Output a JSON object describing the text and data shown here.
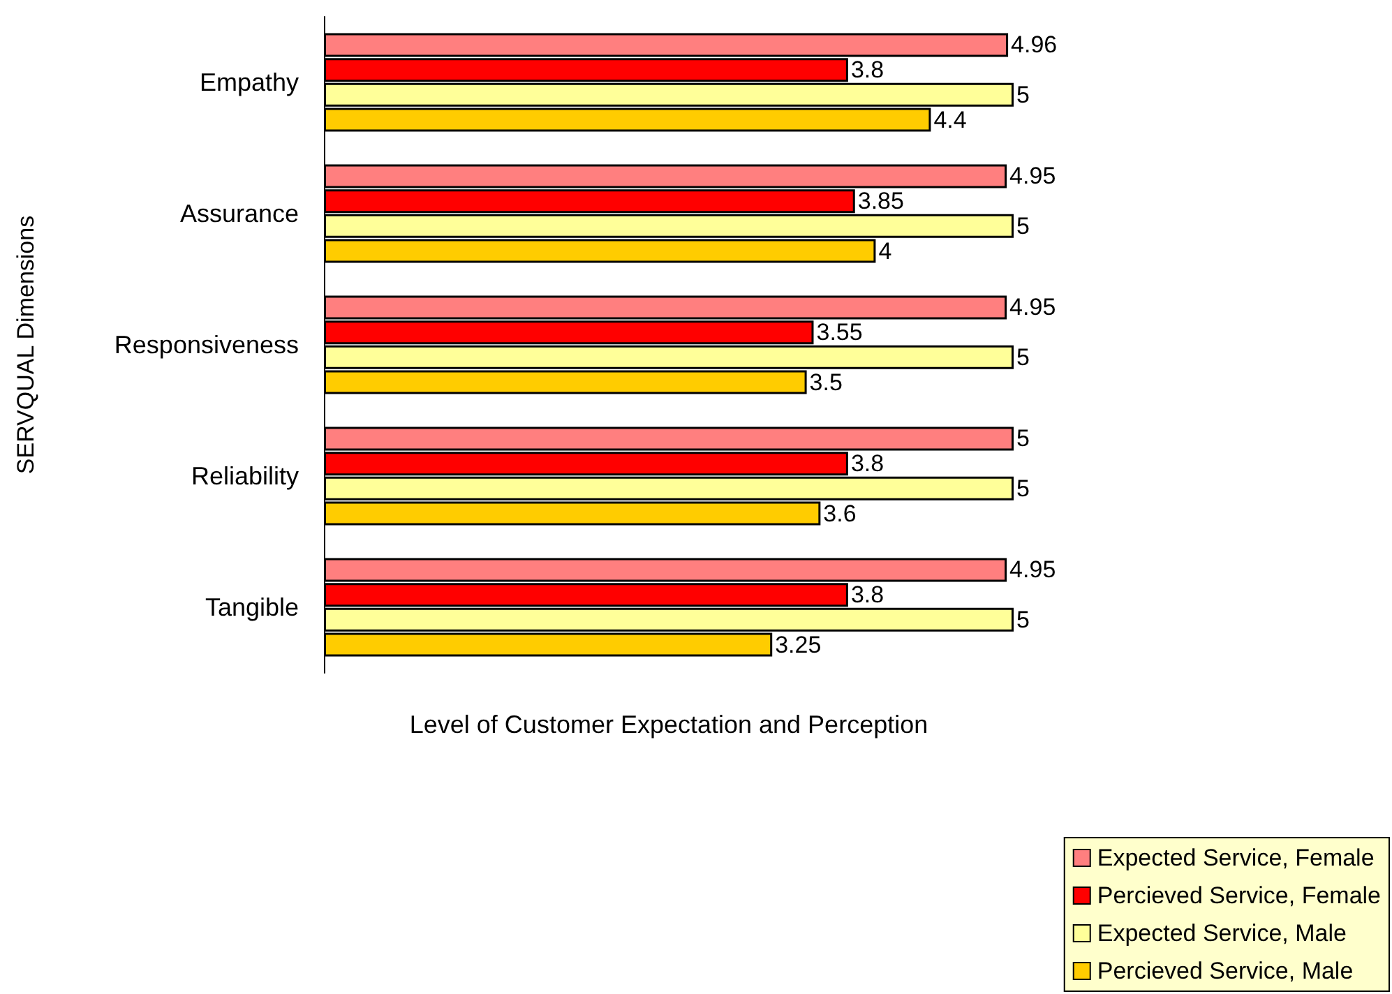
{
  "chart_data": {
    "type": "bar",
    "orientation": "horizontal",
    "xlabel": "Level of Customer Expectation and Perception",
    "ylabel": "SERVQUAL Dimensions",
    "categories": [
      "Empathy",
      "Assurance",
      "Responsiveness",
      "Reliability",
      "Tangible"
    ],
    "series": [
      {
        "name": "Expected Service, Female",
        "color": "#ff7f7f",
        "values": [
          4.96,
          4.95,
          4.95,
          5,
          4.95
        ]
      },
      {
        "name": "Percieved Service, Female",
        "color": "#ff0000",
        "values": [
          3.8,
          3.85,
          3.55,
          3.8,
          3.8
        ]
      },
      {
        "name": "Expected Service, Male",
        "color": "#ffff99",
        "values": [
          5,
          5,
          5,
          5,
          5
        ]
      },
      {
        "name": "Percieved Service, Male",
        "color": "#ffcc00",
        "values": [
          4.4,
          4,
          3.5,
          3.6,
          3.25
        ]
      }
    ],
    "data_labels": true,
    "grid": false,
    "legend": "bottom right"
  }
}
